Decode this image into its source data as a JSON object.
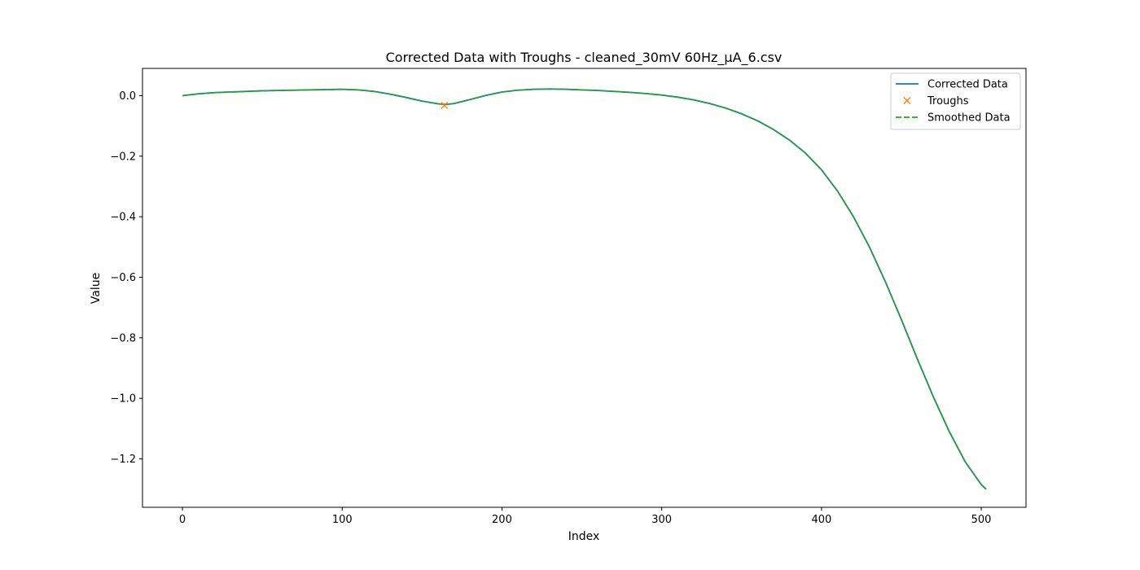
{
  "chart_data": {
    "type": "line",
    "title": "Corrected Data with Troughs - cleaned_30mV 60Hz_µA_6.csv",
    "xlabel": "Index",
    "ylabel": "Value",
    "xlim": [
      -25,
      528
    ],
    "ylim": [
      -1.36,
      0.09
    ],
    "xticks": [
      0,
      100,
      200,
      300,
      400,
      500
    ],
    "yticks": [
      0.0,
      -0.2,
      -0.4,
      -0.6,
      -0.8,
      -1.0,
      -1.2
    ],
    "ytick_labels": [
      "0.0",
      "−0.2",
      "−0.4",
      "−0.6",
      "−0.8",
      "−1.0",
      "−1.2"
    ],
    "grid": false,
    "legend_position": "top-right",
    "series": [
      {
        "name": "Corrected Data",
        "style": "solid",
        "color": "#1f77b4",
        "x": [
          0,
          10,
          20,
          30,
          40,
          50,
          60,
          70,
          80,
          90,
          100,
          110,
          120,
          130,
          140,
          150,
          160,
          165,
          170,
          180,
          190,
          200,
          210,
          220,
          230,
          240,
          250,
          260,
          270,
          280,
          290,
          300,
          310,
          320,
          330,
          340,
          350,
          360,
          370,
          380,
          390,
          400,
          410,
          420,
          430,
          440,
          450,
          460,
          470,
          480,
          490,
          500,
          503
        ],
        "y": [
          0.0,
          0.006,
          0.01,
          0.012,
          0.014,
          0.016,
          0.017,
          0.018,
          0.019,
          0.02,
          0.021,
          0.019,
          0.014,
          0.005,
          -0.006,
          -0.018,
          -0.027,
          -0.029,
          -0.026,
          -0.013,
          0.001,
          0.012,
          0.018,
          0.021,
          0.022,
          0.021,
          0.019,
          0.017,
          0.014,
          0.011,
          0.007,
          0.002,
          -0.005,
          -0.014,
          -0.026,
          -0.041,
          -0.06,
          -0.083,
          -0.112,
          -0.147,
          -0.19,
          -0.245,
          -0.315,
          -0.4,
          -0.5,
          -0.615,
          -0.74,
          -0.87,
          -0.995,
          -1.11,
          -1.21,
          -1.285,
          -1.3
        ]
      },
      {
        "name": "Smoothed Data",
        "style": "dashed",
        "color": "#2ca02c",
        "x": [
          0,
          10,
          20,
          30,
          40,
          50,
          60,
          70,
          80,
          90,
          100,
          110,
          120,
          130,
          140,
          150,
          160,
          165,
          170,
          180,
          190,
          200,
          210,
          220,
          230,
          240,
          250,
          260,
          270,
          280,
          290,
          300,
          310,
          320,
          330,
          340,
          350,
          360,
          370,
          380,
          390,
          400,
          410,
          420,
          430,
          440,
          450,
          460,
          470,
          480,
          490,
          500,
          503
        ],
        "y": [
          0.0,
          0.006,
          0.01,
          0.012,
          0.014,
          0.016,
          0.017,
          0.018,
          0.019,
          0.02,
          0.021,
          0.019,
          0.014,
          0.005,
          -0.006,
          -0.018,
          -0.027,
          -0.029,
          -0.026,
          -0.013,
          0.001,
          0.012,
          0.018,
          0.021,
          0.022,
          0.021,
          0.019,
          0.017,
          0.014,
          0.011,
          0.007,
          0.002,
          -0.005,
          -0.014,
          -0.026,
          -0.041,
          -0.06,
          -0.083,
          -0.112,
          -0.147,
          -0.19,
          -0.245,
          -0.315,
          -0.4,
          -0.5,
          -0.615,
          -0.74,
          -0.87,
          -0.995,
          -1.11,
          -1.21,
          -1.285,
          -1.3
        ]
      },
      {
        "name": "Troughs",
        "style": "marker-x",
        "color": "#ff7f0e",
        "x": [
          164
        ],
        "y": [
          -0.032
        ]
      }
    ],
    "legend": [
      "Corrected Data",
      "Troughs",
      "Smoothed Data"
    ]
  }
}
